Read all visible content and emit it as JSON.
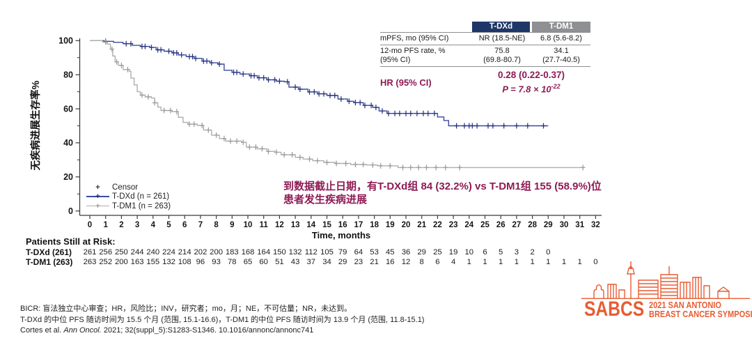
{
  "colors": {
    "tdxd_curve": "#3A4A9F",
    "tdxd_censor": "#232F7E",
    "tdm1_curve": "#AFAFAF",
    "tdm1_censor": "#9A9A9A",
    "header_navy": "#1E3668",
    "header_gray": "#8F9093",
    "accent_maroon": "#8E1B55",
    "logo_orange": "#E85C33"
  },
  "chart_data": {
    "type": "line",
    "subtype": "kaplan_meier_step",
    "title": "",
    "xlabel": "Time, months",
    "ylabel": "无疾病进展生存率%",
    "xlim": [
      0,
      32
    ],
    "ylim": [
      0,
      100
    ],
    "xticks": [
      0,
      1,
      2,
      3,
      4,
      5,
      6,
      7,
      8,
      9,
      10,
      11,
      12,
      13,
      14,
      15,
      16,
      17,
      18,
      19,
      20,
      21,
      22,
      23,
      24,
      25,
      26,
      27,
      28,
      29,
      30,
      31,
      32
    ],
    "yticks": [
      0,
      20,
      40,
      60,
      80,
      100
    ],
    "grid": false,
    "legend_position": "lower-left",
    "series": [
      {
        "name": "T-DXd (n = 261)",
        "color": "#3A4A9F",
        "censor_color": "#232F7E",
        "steps": [
          [
            0,
            100
          ],
          [
            0.9,
            99.6
          ],
          [
            1.5,
            99
          ],
          [
            2.1,
            98.2
          ],
          [
            2.7,
            97.2
          ],
          [
            3.2,
            96.6
          ],
          [
            3.8,
            96
          ],
          [
            4.2,
            94.6
          ],
          [
            4.7,
            93.8
          ],
          [
            5.2,
            92.8
          ],
          [
            5.6,
            91.6
          ],
          [
            6.1,
            90.6
          ],
          [
            6.6,
            89.6
          ],
          [
            7.1,
            88
          ],
          [
            7.6,
            87
          ],
          [
            8.1,
            86.2
          ],
          [
            8.5,
            82.6
          ],
          [
            9,
            81.4
          ],
          [
            9.5,
            80.4
          ],
          [
            10.1,
            79.4
          ],
          [
            10.6,
            78.2
          ],
          [
            11.2,
            77
          ],
          [
            11.8,
            76.2
          ],
          [
            12.3,
            75.8
          ],
          [
            12.6,
            72.7
          ],
          [
            13.2,
            71.5
          ],
          [
            13.8,
            69.9
          ],
          [
            14.4,
            68.8
          ],
          [
            15,
            67.8
          ],
          [
            15.7,
            65.7
          ],
          [
            16.3,
            64.4
          ],
          [
            16.7,
            63.6
          ],
          [
            17.3,
            62
          ],
          [
            17.9,
            60.8
          ],
          [
            18.3,
            58.7
          ],
          [
            18.8,
            57.3
          ],
          [
            21.7,
            57.3
          ],
          [
            22,
            55.2
          ],
          [
            22.4,
            53.1
          ],
          [
            22.7,
            50
          ],
          [
            29,
            50
          ]
        ],
        "censor_months": [
          1.0,
          2.3,
          2.6,
          3.3,
          3.5,
          3.9,
          4.3,
          4.5,
          5.0,
          5.3,
          5.5,
          5.8,
          6.3,
          6.5,
          6.7,
          7.2,
          7.4,
          7.7,
          8.2,
          9.1,
          9.3,
          9.7,
          10.2,
          10.4,
          10.7,
          11.0,
          11.3,
          11.7,
          12.0,
          12.5,
          13.0,
          13.3,
          13.9,
          14.2,
          14.5,
          14.8,
          15.2,
          15.5,
          15.9,
          16.4,
          16.8,
          17.1,
          17.4,
          17.8,
          18.1,
          18.5,
          18.9,
          19.3,
          19.6,
          20.0,
          20.3,
          20.7,
          21.1,
          21.4,
          21.8,
          23.2,
          23.7,
          24.0,
          24.2,
          24.5,
          25.2,
          25.5,
          26.2,
          27.0,
          27.7,
          28.7
        ]
      },
      {
        "name": "T-DM1 (n = 263)",
        "color": "#AFAFAF",
        "censor_color": "#9A9A9A",
        "steps": [
          [
            0,
            100
          ],
          [
            0.8,
            99.2
          ],
          [
            1.1,
            98
          ],
          [
            1.3,
            95
          ],
          [
            1.45,
            91
          ],
          [
            1.6,
            87.5
          ],
          [
            1.8,
            85.5
          ],
          [
            2.1,
            83
          ],
          [
            2.5,
            82
          ],
          [
            2.6,
            78
          ],
          [
            2.8,
            74
          ],
          [
            3,
            70
          ],
          [
            3.2,
            68
          ],
          [
            3.5,
            67
          ],
          [
            3.9,
            66.3
          ],
          [
            4.1,
            63.5
          ],
          [
            4.3,
            61
          ],
          [
            4.5,
            59
          ],
          [
            5.2,
            58.3
          ],
          [
            5.6,
            55
          ],
          [
            5.9,
            52
          ],
          [
            6.2,
            51
          ],
          [
            6.8,
            50.2
          ],
          [
            7.2,
            47.5
          ],
          [
            7.7,
            44.5
          ],
          [
            8.2,
            42.5
          ],
          [
            8.6,
            41
          ],
          [
            9.6,
            40.3
          ],
          [
            9.9,
            37.5
          ],
          [
            10.6,
            36.5
          ],
          [
            11.2,
            35
          ],
          [
            11.7,
            34.5
          ],
          [
            12.1,
            33
          ],
          [
            13,
            31.5
          ],
          [
            13.5,
            30.5
          ],
          [
            14.1,
            29.5
          ],
          [
            14.8,
            28.5
          ],
          [
            15.5,
            27.9
          ],
          [
            16.5,
            27.3
          ],
          [
            17.5,
            27
          ],
          [
            18.2,
            26.5
          ],
          [
            19.5,
            25.5
          ],
          [
            31.3,
            25.5
          ]
        ],
        "censor_months": [
          1.0,
          1.4,
          1.7,
          2.0,
          2.4,
          3.3,
          3.7,
          4.1,
          4.7,
          5.1,
          5.5,
          6.3,
          6.6,
          7.1,
          7.5,
          8.0,
          8.5,
          8.9,
          9.3,
          9.7,
          10.1,
          10.5,
          10.9,
          11.3,
          11.8,
          12.3,
          12.8,
          13.3,
          13.9,
          14.4,
          15.0,
          15.6,
          16.2,
          16.8,
          17.3,
          17.9,
          18.4,
          19.0,
          19.8,
          20.3,
          20.8,
          21.3,
          21.9,
          22.5,
          23.4,
          31.2
        ]
      }
    ]
  },
  "legend": {
    "censor_symbol": "+",
    "censor_label": "Censor"
  },
  "stats_table": {
    "columns": [
      "T-DXd",
      "T-DM1"
    ],
    "rows": [
      {
        "label": "mPFS, mo (95% CI)",
        "tdxd": "NR (18.5-NE)",
        "tdm1": "6.8 (5.6-8.2)"
      },
      {
        "label": "12-mo PFS rate, %\n(95% CI)",
        "tdxd": "75.8\n(69.8-80.7)",
        "tdm1": "34.1\n(27.7-40.5)"
      }
    ],
    "hr_label": "HR (95% CI)",
    "hr_value": "0.28 (0.22-0.37)",
    "p_base": "P = 7.8 × 10",
    "p_exponent": "-22"
  },
  "annotation": {
    "line1": "到数据截止日期，有T-DXd组 84 (32.2%) vs T-DM1组 155 (58.9%)位",
    "line2": "患者发生疾病进展"
  },
  "risk_table": {
    "title": "Patients Still at Risk:",
    "rows": [
      {
        "label": "T-DXd (261)",
        "values": [
          261,
          256,
          250,
          244,
          240,
          224,
          214,
          202,
          200,
          183,
          168,
          164,
          150,
          132,
          112,
          105,
          79,
          64,
          53,
          45,
          36,
          29,
          25,
          19,
          10,
          6,
          5,
          3,
          2,
          0
        ]
      },
      {
        "label": "T-DM1 (263)",
        "values": [
          263,
          252,
          200,
          163,
          155,
          132,
          108,
          96,
          93,
          78,
          65,
          60,
          51,
          43,
          37,
          34,
          29,
          23,
          21,
          16,
          12,
          8,
          6,
          4,
          1,
          1,
          1,
          1,
          1,
          1,
          1,
          1,
          0
        ]
      }
    ]
  },
  "footnotes": {
    "line1": "BICR: 盲法独立中心审查；HR，风险比；INV，研究者；mo，月；NE，不可估量；NR，未达到。",
    "line2": "T-DXd 的中位 PFS 随访时间为 15.5 个月 (范围, 15.1-16.6)，T-DM1 的中位 PFS 随访时间为 13.9 个月 (范围, 11.8-15.1)",
    "line3_pre": "Cortes et al. ",
    "line3_italic": "Ann Oncol.",
    "line3_post": " 2021; 32(suppl_5):S1283-S1346. 10.1016/annonc/annonc741"
  },
  "logo": {
    "wordmark": "SABCS",
    "line1": "2021 SAN ANTONIO",
    "line2": "BREAST CANCER SYMPOSIUM"
  }
}
